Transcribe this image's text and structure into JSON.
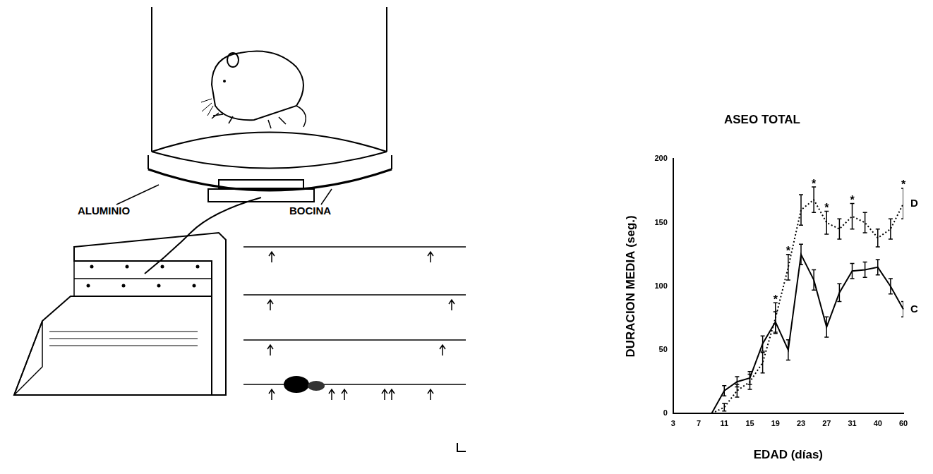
{
  "diagram": {
    "labels": [
      "ALUMINIO",
      "BOCINA"
    ]
  },
  "chart_data": {
    "type": "line",
    "title": "ASEO TOTAL",
    "x_label": "EDAD (días)",
    "y_label": "DURACION MEDIA (seg.)",
    "categories": [
      3,
      null,
      7,
      null,
      11,
      null,
      15,
      null,
      19,
      null,
      23,
      null,
      27,
      null,
      31,
      null,
      40,
      null,
      60
    ],
    "series": [
      {
        "name": "D",
        "color": "#000000",
        "line_style": "dotted",
        "marker": "none",
        "values": [
          0,
          0,
          0,
          0,
          5,
          18,
          25,
          40,
          75,
          115,
          160,
          168,
          150,
          145,
          155,
          150,
          138,
          145,
          165
        ],
        "errors": [
          0,
          0,
          0,
          0,
          3,
          5,
          6,
          8,
          12,
          10,
          12,
          10,
          9,
          8,
          10,
          8,
          7,
          8,
          12
        ]
      },
      {
        "name": "C",
        "color": "#000000",
        "line_style": "solid",
        "marker": "none",
        "values": [
          0,
          0,
          0,
          0,
          18,
          25,
          28,
          55,
          72,
          50,
          125,
          105,
          68,
          95,
          112,
          113,
          115,
          100,
          82
        ],
        "errors": [
          0,
          0,
          0,
          0,
          4,
          4,
          5,
          6,
          8,
          8,
          8,
          8,
          8,
          7,
          6,
          6,
          6,
          6,
          6
        ]
      }
    ],
    "ylim": [
      0,
      200
    ],
    "yticks": [
      0,
      50,
      100,
      150,
      200
    ],
    "grid": false,
    "annotations": [
      {
        "text": "*",
        "series": "D",
        "index": 8
      },
      {
        "text": "*",
        "series": "D",
        "index": 9
      },
      {
        "text": "*",
        "series": "D",
        "index": 11
      },
      {
        "text": "*",
        "series": "D",
        "index": 12
      },
      {
        "text": "*",
        "series": "D",
        "index": 14
      },
      {
        "text": "*",
        "series": "D",
        "index": 18
      }
    ]
  }
}
